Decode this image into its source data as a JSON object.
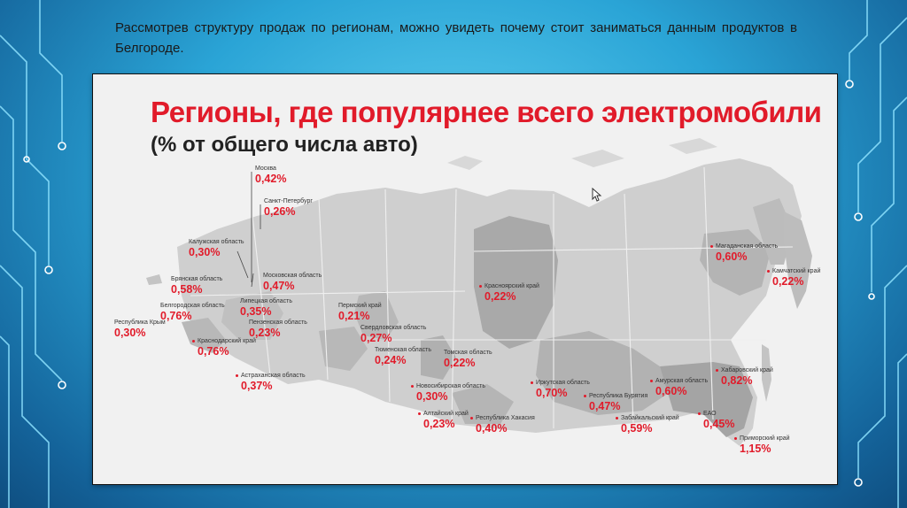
{
  "slide": {
    "caption": "Рассмотрев структуру продаж по регионам, можно увидеть почему стоит заниматься данным продуктов в Белгороде."
  },
  "map": {
    "title": "Регионы, где популярнее всего электромобили",
    "subtitle": "(% от общего числа авто)",
    "regions": [
      {
        "name": "Москва",
        "value": "0,42%"
      },
      {
        "name": "Санкт-Петербург",
        "value": "0,26%"
      },
      {
        "name": "Калужская область",
        "value": "0,30%"
      },
      {
        "name": "Брянская область",
        "value": "0,58%"
      },
      {
        "name": "Московская область",
        "value": "0,47%"
      },
      {
        "name": "Белгородская область",
        "value": "0,76%"
      },
      {
        "name": "Липецкая область",
        "value": "0,35%"
      },
      {
        "name": "Республика Крым",
        "value": "0,30%"
      },
      {
        "name": "Пензенская область",
        "value": "0,23%"
      },
      {
        "name": "Краснодарский край",
        "value": "0,76%"
      },
      {
        "name": "Астраханская область",
        "value": "0,37%"
      },
      {
        "name": "Пермский край",
        "value": "0,21%"
      },
      {
        "name": "Свердловская область",
        "value": "0,27%"
      },
      {
        "name": "Тюменская область",
        "value": "0,24%"
      },
      {
        "name": "Томская область",
        "value": "0,22%"
      },
      {
        "name": "Новосибирская область",
        "value": "0,30%"
      },
      {
        "name": "Алтайский край",
        "value": "0,23%"
      },
      {
        "name": "Республика Хакасия",
        "value": "0,40%"
      },
      {
        "name": "Красноярский край",
        "value": "0,22%"
      },
      {
        "name": "Иркутская область",
        "value": "0,70%"
      },
      {
        "name": "Республика Бурятия",
        "value": "0,47%"
      },
      {
        "name": "Забайкальский край",
        "value": "0,59%"
      },
      {
        "name": "Амурская область",
        "value": "0,60%"
      },
      {
        "name": "Хабаровский край",
        "value": "0,82%"
      },
      {
        "name": "ЕАО",
        "value": "0,45%"
      },
      {
        "name": "Приморский край",
        "value": "1,15%"
      },
      {
        "name": "Магаданская область",
        "value": "0,60%"
      },
      {
        "name": "Камчатский край",
        "value": "0,22%"
      }
    ]
  },
  "colors": {
    "accent": "#e11b2a",
    "background": "#2aa4d6",
    "map_land": "#c9c9c9",
    "map_highlight": "#a9a9a9"
  }
}
